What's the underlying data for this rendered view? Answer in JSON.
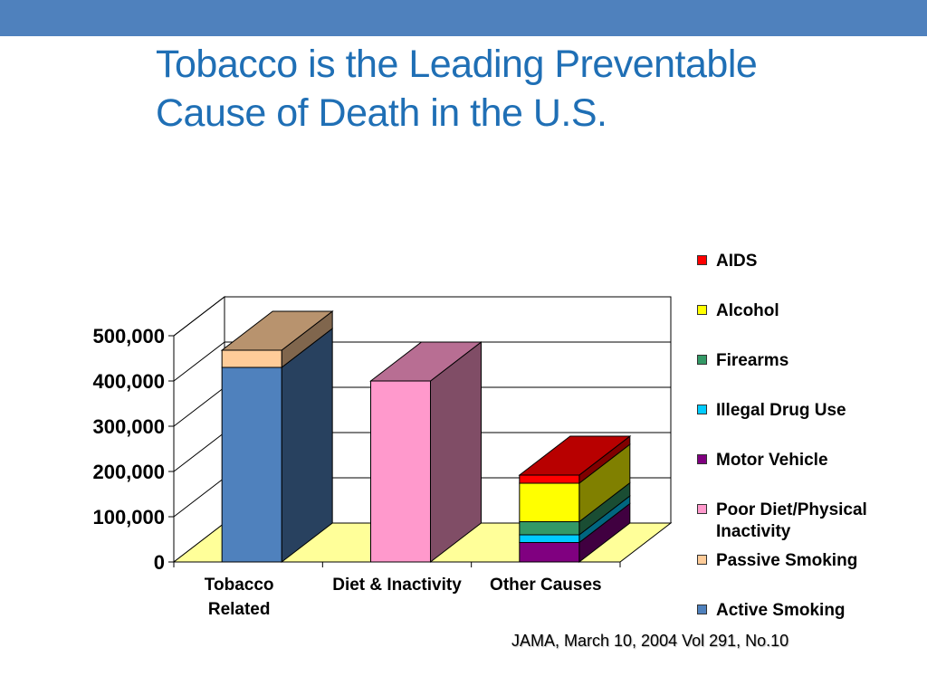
{
  "slide": {
    "title_lines": [
      "Tobacco is the Leading Preventable",
      "Cause of Death in the U.S."
    ],
    "source": "JAMA, March 10, 2004 Vol 291, No.10",
    "accent_color": "#4f81bd",
    "title_color": "#1f6fb5"
  },
  "chart_data": {
    "type": "bar",
    "stacked": true,
    "three_d": true,
    "title": "",
    "xlabel": "",
    "ylabel": "",
    "ylim": [
      0,
      500000
    ],
    "y_ticks": [
      0,
      100000,
      200000,
      300000,
      400000,
      500000
    ],
    "y_tick_labels": [
      "0",
      "100,000",
      "200,000",
      "300,000",
      "400,000",
      "500,000"
    ],
    "grid": true,
    "legend_position": "right",
    "floor_color": "#ffff99",
    "categories": [
      "Tobacco Related",
      "Diet & Inactivity",
      "Other  Causes"
    ],
    "category_labels": [
      [
        "Tobacco",
        "Related"
      ],
      [
        "Diet & Inactivity"
      ],
      [
        "Other  Causes"
      ]
    ],
    "series": [
      {
        "name": "Active Smoking",
        "color": "#4f81bd",
        "values": [
          430000,
          0,
          0
        ]
      },
      {
        "name": "Passive Smoking",
        "color": "#ffcc99",
        "values": [
          38000,
          0,
          0
        ]
      },
      {
        "name": "Poor Diet/Physical Inactivity",
        "color": "#ff99cc",
        "values": [
          0,
          400000,
          0
        ]
      },
      {
        "name": "Motor Vehicle",
        "color": "#800080",
        "values": [
          0,
          0,
          43000
        ]
      },
      {
        "name": "Illegal Drug Use",
        "color": "#00ccff",
        "values": [
          0,
          0,
          17000
        ]
      },
      {
        "name": "Firearms",
        "color": "#339966",
        "values": [
          0,
          0,
          29000
        ]
      },
      {
        "name": "Alcohol",
        "color": "#ffff00",
        "values": [
          0,
          0,
          85000
        ]
      },
      {
        "name": "AIDS",
        "color": "#ff0000",
        "values": [
          0,
          0,
          18000
        ]
      }
    ],
    "legend_order": [
      "AIDS",
      "Alcohol",
      "Firearms",
      "Illegal Drug Use",
      "Motor Vehicle",
      "Poor Diet/Physical Inactivity",
      "Passive Smoking",
      "Active Smoking"
    ]
  }
}
